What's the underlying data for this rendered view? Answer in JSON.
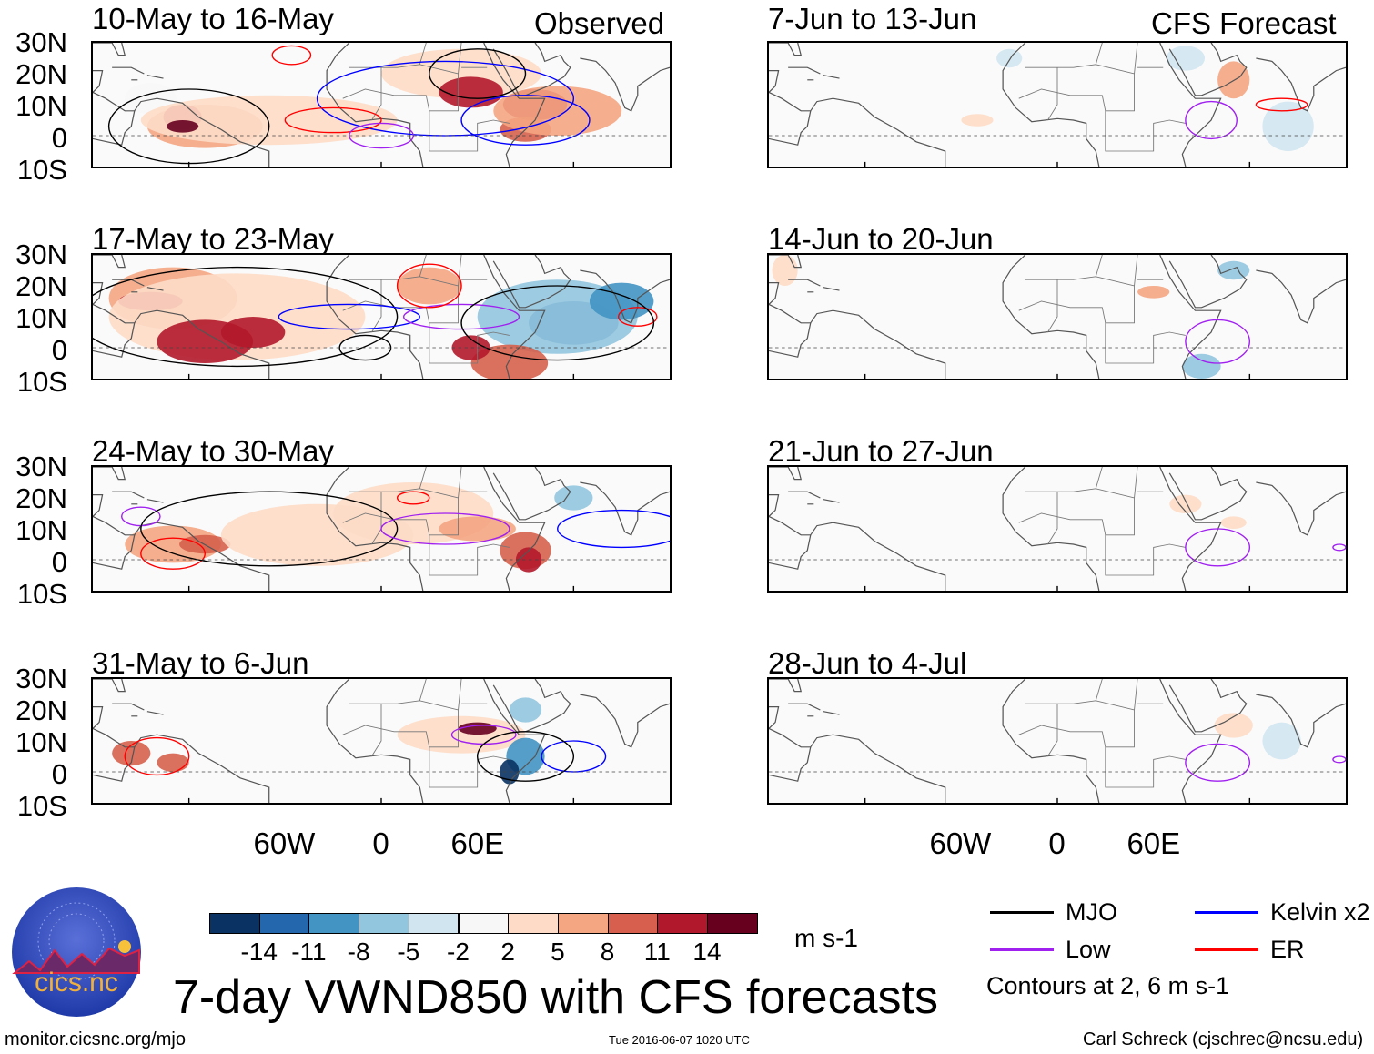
{
  "figure_title": "7-day VWND850 with CFS forecasts",
  "columns": {
    "left": "Observed",
    "right": "CFS Forecast"
  },
  "panels_observed": [
    {
      "period": "10-May to 16-May"
    },
    {
      "period": "17-May to 23-May"
    },
    {
      "period": "24-May to 30-May"
    },
    {
      "period": "31-May to 6-Jun"
    }
  ],
  "panels_forecast": [
    {
      "period": "7-Jun to 13-Jun"
    },
    {
      "period": "14-Jun to 20-Jun"
    },
    {
      "period": "21-Jun to 27-Jun"
    },
    {
      "period": "28-Jun to 4-Jul"
    }
  ],
  "lat_labels": [
    "30N",
    "20N",
    "10N",
    "0",
    "10S"
  ],
  "lon_labels": [
    "60W",
    "0",
    "60E"
  ],
  "colorbar": {
    "levels": [
      "-14",
      "-11",
      "-8",
      "-5",
      "-2",
      "2",
      "5",
      "8",
      "11",
      "14"
    ],
    "colors": [
      "#0a3263",
      "#2467ad",
      "#4393c3",
      "#92c5de",
      "#d1e5f0",
      "#f7f7f7",
      "#fddbc7",
      "#f4a582",
      "#d6604d",
      "#b2182b",
      "#67001f"
    ],
    "units": "m s-1"
  },
  "legend": {
    "items": [
      {
        "label": "MJO",
        "color": "#000000"
      },
      {
        "label": "Kelvin x2",
        "color": "#0000ff"
      },
      {
        "label": "Low",
        "color": "#a020f0"
      },
      {
        "label": "ER",
        "color": "#ff0000"
      }
    ],
    "note": "Contours at 2, 6 m s-1"
  },
  "logo": {
    "text": "cics.nc",
    "ring_text": "Cooperative Institute for Climate and Satellites"
  },
  "footer": {
    "url": "monitor.cicsnc.org/mjo",
    "timestamp": "Tue 2016-06-07 1020 UTC",
    "author": "Carl Schreck (cjschrec@ncsu.edu)"
  }
}
